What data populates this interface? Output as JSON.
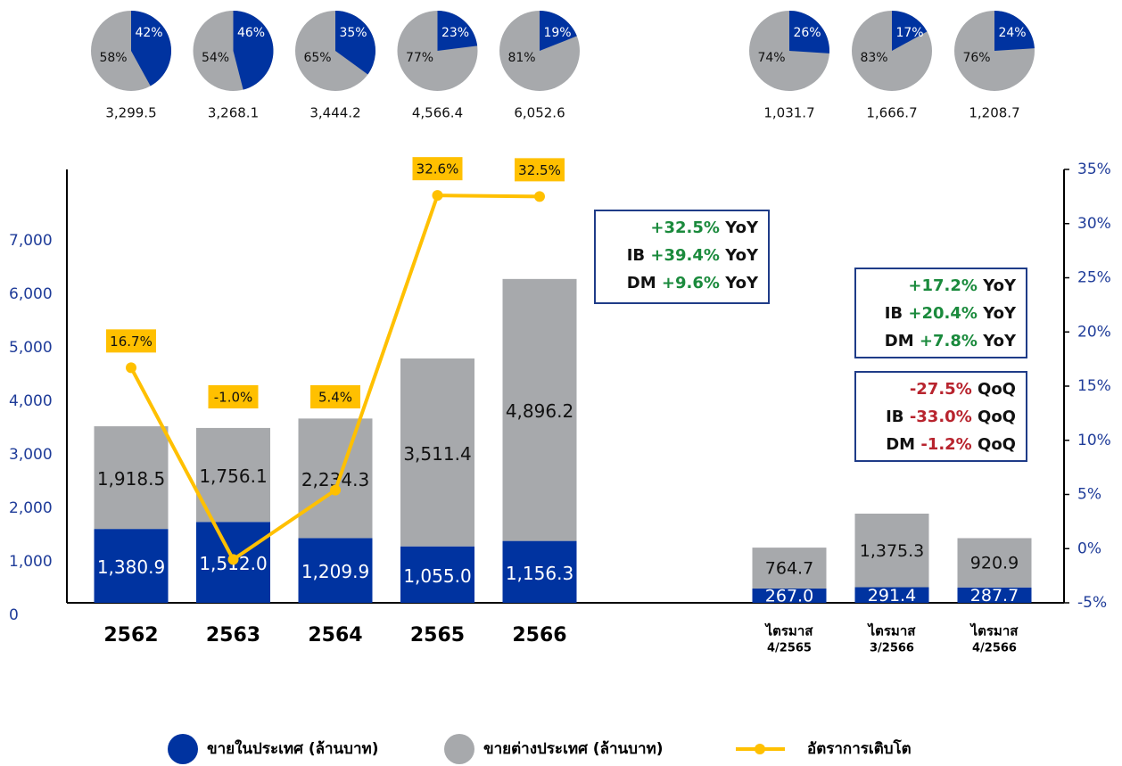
{
  "chart_data": {
    "type": "bar",
    "categories": [
      "2562",
      "2563",
      "2564",
      "2565",
      "2566",
      [
        "ไตรมาส",
        "4/2565"
      ],
      [
        "ไตรมาส",
        "3/2566"
      ],
      [
        "ไตรมาส",
        "4/2566"
      ]
    ],
    "series": [
      {
        "name": "ขายในประเทศ (ล้านบาท)",
        "color": "#0033a0",
        "values": [
          1380.9,
          1512.0,
          1209.9,
          1055.0,
          1156.3,
          267.0,
          291.4,
          287.7
        ],
        "value_labels": [
          "1,380.9",
          "1,512.0",
          "1,209.9",
          "1,055.0",
          "1,156.3",
          "267.0",
          "291.4",
          "287.7"
        ]
      },
      {
        "name": "ขายต่างประเทศ (ล้านบาท)",
        "color": "#a7a9ac",
        "values": [
          1918.5,
          1756.1,
          2234.3,
          3511.4,
          4896.2,
          764.7,
          1375.3,
          920.9
        ],
        "value_labels": [
          "1,918.5",
          "1,756.1",
          "2,234.3",
          "3,511.4",
          "4,896.2",
          "764.7",
          "1,375.3",
          "920.9"
        ]
      },
      {
        "name": "อัตราการเติบโต",
        "color": "#ffc000",
        "type": "line",
        "axis": "y2",
        "values": [
          16.7,
          -1.0,
          5.4,
          32.6,
          32.5,
          null,
          null,
          null
        ],
        "value_labels": [
          "16.7%",
          "-1.0%",
          "5.4%",
          "32.6%",
          "32.5%",
          null,
          null,
          null
        ]
      }
    ],
    "ylim": [
      0,
      8100
    ],
    "yticks": [
      0,
      {
        "value": 1000,
        "label": "1,000"
      },
      {
        "value": 2000,
        "label": "2,000"
      },
      {
        "value": 3000,
        "label": "3,000"
      },
      {
        "value": 4000,
        "label": "4,000"
      },
      {
        "value": 5000,
        "label": "5,000"
      },
      {
        "value": 6000,
        "label": "6,000"
      },
      {
        "value": 7000,
        "label": "7,000"
      }
    ],
    "y2lim": [
      -5,
      35
    ],
    "y2ticks": [
      {
        "value": -5,
        "label": "-5%"
      },
      {
        "value": 0,
        "label": "0%"
      },
      {
        "value": 5,
        "label": "5%"
      },
      {
        "value": 10,
        "label": "10%"
      },
      {
        "value": 15,
        "label": "15%"
      },
      {
        "value": 20,
        "label": "20%"
      },
      {
        "value": 25,
        "label": "25%"
      },
      {
        "value": 30,
        "label": "30%"
      },
      {
        "value": 35,
        "label": "35%"
      }
    ],
    "pies": [
      {
        "values": [
          42,
          58
        ],
        "value_labels": [
          "42%",
          "58%"
        ],
        "total": 3299.5,
        "total_label": "3,299.5"
      },
      {
        "values": [
          46,
          54
        ],
        "value_labels": [
          "46%",
          "54%"
        ],
        "total": 3268.1,
        "total_label": "3,268.1"
      },
      {
        "values": [
          35,
          65
        ],
        "value_labels": [
          "35%",
          "65%"
        ],
        "total": 3444.2,
        "total_label": "3,444.2"
      },
      {
        "values": [
          23,
          77
        ],
        "value_labels": [
          "23%",
          "77%"
        ],
        "total": 4566.4,
        "total_label": "4,566.4"
      },
      {
        "values": [
          19,
          81
        ],
        "value_labels": [
          "19%",
          "81%"
        ],
        "total": 6052.6,
        "total_label": "6,052.6"
      },
      {
        "values": [
          26,
          74
        ],
        "value_labels": [
          "26%",
          "74%"
        ],
        "total": 1031.7,
        "total_label": "1,031.7"
      },
      {
        "values": [
          17,
          83
        ],
        "value_labels": [
          "17%",
          "83%"
        ],
        "total": 1666.7,
        "total_label": "1,666.7"
      },
      {
        "values": [
          24,
          76
        ],
        "value_labels": [
          "24%",
          "76%"
        ],
        "total": 1208.7,
        "total_label": "1,208.7"
      }
    ],
    "annotations": [
      {
        "color": "#1a8a3c",
        "lines": [
          {
            "prefix": "",
            "value": "+32.5%",
            "suffix": "YoY"
          },
          {
            "prefix": "IB",
            "value": "+39.4%",
            "suffix": "YoY"
          },
          {
            "prefix": "DM",
            "value": "+9.6%",
            "suffix": "YoY"
          }
        ]
      },
      {
        "color": "#1a8a3c",
        "lines": [
          {
            "prefix": "",
            "value": "+17.2%",
            "suffix": "YoY"
          },
          {
            "prefix": "IB",
            "value": "+20.4%",
            "suffix": "YoY"
          },
          {
            "prefix": "DM",
            "value": "+7.8%",
            "suffix": "YoY"
          }
        ]
      },
      {
        "color": "#b8242e",
        "lines": [
          {
            "prefix": "",
            "value": "-27.5%",
            "suffix": "QoQ"
          },
          {
            "prefix": "IB",
            "value": "-33.0%",
            "suffix": "QoQ"
          },
          {
            "prefix": "DM",
            "value": "-1.2%",
            "suffix": "QoQ"
          }
        ]
      }
    ]
  }
}
